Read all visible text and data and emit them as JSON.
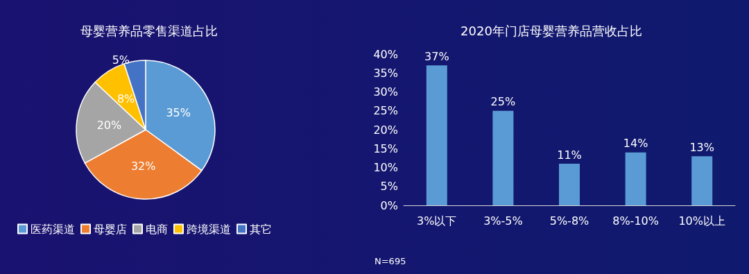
{
  "chart_data": [
    {
      "type": "pie",
      "title": "母婴营养品零售渠道占比",
      "categories": [
        "医药渠道",
        "母婴店",
        "电商",
        "跨境渠道",
        "其它"
      ],
      "values": [
        35,
        32,
        20,
        8,
        5
      ],
      "colors": [
        "#5b9bd5",
        "#ed7d31",
        "#a5a5a5",
        "#ffc000",
        "#4472c4"
      ],
      "value_labels": [
        "35%",
        "32%",
        "20%",
        "8%",
        "5%"
      ],
      "legend": "bottom"
    },
    {
      "type": "bar",
      "title": "2020年门店母婴营养品营收占比",
      "categories": [
        "3%以下",
        "3%-5%",
        "5%-8%",
        "8%-10%",
        "10%以上"
      ],
      "values": [
        37,
        25,
        11,
        14,
        13
      ],
      "color": "#5b9bd5",
      "value_labels": [
        "37%",
        "25%",
        "11%",
        "14%",
        "13%"
      ],
      "ylim": [
        0,
        40
      ],
      "yticks": [
        {
          "value": 0,
          "label": "0%"
        },
        {
          "value": 5,
          "label": "5%"
        },
        {
          "value": 10,
          "label": "10%"
        },
        {
          "value": 15,
          "label": "15%"
        },
        {
          "value": 20,
          "label": "20%"
        },
        {
          "value": 25,
          "label": "25%"
        },
        {
          "value": 30,
          "label": "30%"
        },
        {
          "value": 35,
          "label": "35%"
        },
        {
          "value": 40,
          "label": "40%"
        }
      ],
      "grid": false,
      "annotations": [
        "N=695"
      ]
    }
  ]
}
